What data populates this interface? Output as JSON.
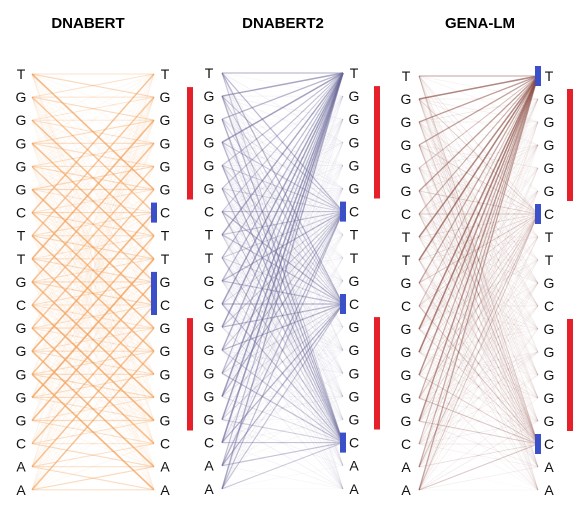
{
  "panels": [
    {
      "title": "DNABERT",
      "left_tokens": [
        "T",
        "G",
        "G",
        "G",
        "G",
        "G",
        "C",
        "T",
        "T",
        "G",
        "C",
        "G",
        "G",
        "G",
        "G",
        "G",
        "C",
        "A",
        "A"
      ],
      "right_tokens": [
        "T",
        "G",
        "G",
        "G",
        "G",
        "G",
        "C",
        "T",
        "T",
        "G",
        "C",
        "G",
        "G",
        "G",
        "G",
        "G",
        "C",
        "A",
        "A"
      ],
      "edge_color": "#f3a15a",
      "markers": [
        {
          "color": "#e5202b",
          "from": 1,
          "to": 5
        },
        {
          "color": "#3a4fc8",
          "from": 6,
          "to": 6
        },
        {
          "color": "#3a4fc8",
          "from": 9,
          "to": 10
        },
        {
          "color": "#e5202b",
          "from": 11,
          "to": 15
        }
      ]
    },
    {
      "title": "DNABERT2",
      "left_tokens": [
        "T",
        "G",
        "G",
        "G",
        "G",
        "G",
        "C",
        "T",
        "T",
        "G",
        "C",
        "G",
        "G",
        "G",
        "G",
        "G",
        "C",
        "A",
        "A"
      ],
      "right_tokens": [
        "T",
        "G",
        "G",
        "G",
        "G",
        "G",
        "C",
        "T",
        "T",
        "G",
        "C",
        "G",
        "G",
        "G",
        "G",
        "G",
        "C",
        "A",
        "A"
      ],
      "edge_color": "#6c6a9a",
      "markers": [
        {
          "color": "#e5202b",
          "from": 1,
          "to": 5
        },
        {
          "color": "#3a4fc8",
          "from": 6,
          "to": 6
        },
        {
          "color": "#3a4fc8",
          "from": 10,
          "to": 10
        },
        {
          "color": "#e5202b",
          "from": 11,
          "to": 15
        },
        {
          "color": "#3a4fc8",
          "from": 16,
          "to": 16
        }
      ]
    },
    {
      "title": "GENA-LM",
      "left_tokens": [
        "T",
        "G",
        "G",
        "G",
        "G",
        "G",
        "C",
        "T",
        "T",
        "G",
        "C",
        "G",
        "G",
        "G",
        "G",
        "G",
        "C",
        "A",
        "A"
      ],
      "right_tokens": [
        "T",
        "G",
        "G",
        "G",
        "G",
        "G",
        "C",
        "T",
        "T",
        "G",
        "C",
        "G",
        "G",
        "G",
        "G",
        "G",
        "C",
        "A",
        "A"
      ],
      "edge_color": "#8a4a40",
      "markers": [
        {
          "color": "#3a4fc8",
          "from": 0,
          "to": 0
        },
        {
          "color": "#e5202b",
          "from": 1,
          "to": 5
        },
        {
          "color": "#3a4fc8",
          "from": 6,
          "to": 6
        },
        {
          "color": "#e5202b",
          "from": 11,
          "to": 15
        },
        {
          "color": "#3a4fc8",
          "from": 16,
          "to": 16
        }
      ]
    }
  ]
}
